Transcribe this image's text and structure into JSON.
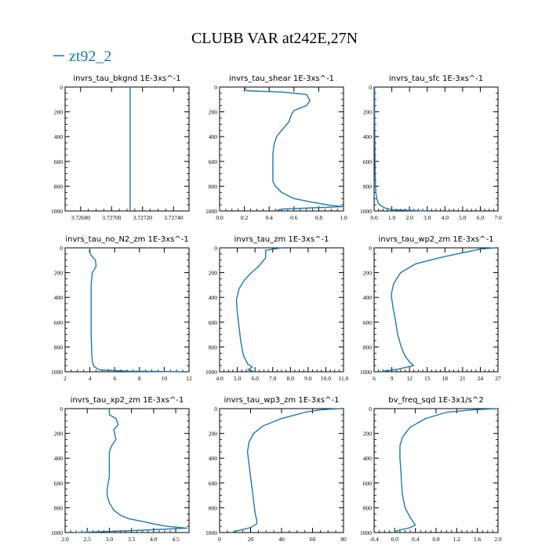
{
  "figure": {
    "title": "CLUBB VAR at242E,27N",
    "legend_label": "zt92_2",
    "line_color": "#1f77b4"
  },
  "chart_data": [
    {
      "type": "line",
      "title": "invrs_tau_bkgnd   1E-3xs^-1",
      "xlim": [
        3.7267,
        3.7275
      ],
      "ylim": [
        1000,
        0
      ],
      "xticks": [
        "3.72680",
        "3.72700",
        "3.72720",
        "3.72740"
      ],
      "xtick_values": [
        3.7268,
        3.727,
        3.7272,
        3.7274
      ],
      "yticks": [
        "0",
        "200",
        "400",
        "600",
        "800",
        "1000"
      ],
      "series": [
        {
          "x": [
            3.72712,
            3.72712
          ],
          "y": [
            0,
            1000
          ]
        }
      ]
    },
    {
      "type": "line",
      "title": "invrs_tau_shear   1E-3xs^-1",
      "xlim": [
        0,
        1.0
      ],
      "ylim": [
        1000,
        0
      ],
      "xticks": [
        "0.0",
        "0.2",
        "0.4",
        "0.6",
        "0.8",
        "1.0"
      ],
      "xtick_values": [
        0,
        0.2,
        0.4,
        0.6,
        0.8,
        1.0
      ],
      "yticks": [
        "0",
        "200",
        "400",
        "600",
        "800",
        "1000"
      ],
      "series": [
        {
          "x": [
            0.2,
            0.22,
            0.5,
            0.7,
            0.73,
            0.7,
            0.6,
            0.58,
            0.56,
            0.5,
            0.46,
            0.44,
            0.43,
            0.43,
            0.43,
            0.43,
            0.45,
            0.5,
            0.6,
            0.75,
            0.9,
            1.0,
            0.5,
            0.45
          ],
          "y": [
            0,
            30,
            40,
            60,
            110,
            150,
            190,
            220,
            280,
            350,
            400,
            460,
            540,
            640,
            700,
            760,
            800,
            850,
            900,
            930,
            955,
            965,
            985,
            1000
          ]
        }
      ]
    },
    {
      "type": "line",
      "title": "invrs_tau_sfc   1E-3xs^-1",
      "xlim": [
        0,
        7.0
      ],
      "ylim": [
        1000,
        0
      ],
      "xticks": [
        "0.0",
        "1.0",
        "2.0",
        "3.0",
        "4.0",
        "5.0",
        "6.0",
        "7.0"
      ],
      "xtick_values": [
        0,
        1,
        2,
        3,
        4,
        5,
        6,
        7
      ],
      "yticks": [
        "0",
        "200",
        "400",
        "600",
        "800",
        "1000"
      ],
      "series": [
        {
          "x": [
            0.03,
            0.03,
            0.04,
            0.05,
            0.07,
            0.1,
            0.15,
            0.25,
            0.4,
            0.6,
            1.0,
            3.0
          ],
          "y": [
            0,
            200,
            400,
            600,
            750,
            850,
            900,
            940,
            960,
            975,
            990,
            1000
          ]
        }
      ]
    },
    {
      "type": "line",
      "title": "invrs_tau_no_N2_zm   1E-3xs^-1",
      "xlim": [
        2,
        12
      ],
      "ylim": [
        1000,
        0
      ],
      "xticks": [
        "2",
        "4",
        "6",
        "8",
        "10",
        "12"
      ],
      "xtick_values": [
        2,
        4,
        6,
        8,
        10,
        12
      ],
      "yticks": [
        "0",
        "200",
        "400",
        "600",
        "800",
        "1000"
      ],
      "series": [
        {
          "x": [
            4.0,
            3.95,
            4.1,
            4.45,
            4.5,
            4.2,
            4.1,
            4.1,
            4.1,
            4.15,
            4.2,
            4.35,
            4.8,
            7.0,
            11.5
          ],
          "y": [
            0,
            30,
            60,
            100,
            150,
            200,
            300,
            500,
            700,
            850,
            920,
            960,
            985,
            995,
            1000
          ]
        }
      ]
    },
    {
      "type": "line",
      "title": "invrs_tau_zm   1E-3xs^-1",
      "xlim": [
        4.0,
        11.0
      ],
      "ylim": [
        1000,
        0
      ],
      "xticks": [
        "4.0",
        "5.0",
        "6.0",
        "7.0",
        "8.0",
        "9.0",
        "10.0",
        "11.0"
      ],
      "xtick_values": [
        4,
        5,
        6,
        7,
        8,
        9,
        10,
        11
      ],
      "yticks": [
        "0",
        "200",
        "400",
        "600",
        "800",
        "1000"
      ],
      "series": [
        {
          "x": [
            7.5,
            6.6,
            6.6,
            6.2,
            5.8,
            5.4,
            5.1,
            4.95,
            5.0,
            5.1,
            5.2,
            5.35,
            5.6,
            5.85,
            5.6,
            6.0
          ],
          "y": [
            0,
            20,
            80,
            150,
            200,
            260,
            330,
            420,
            520,
            640,
            760,
            870,
            940,
            960,
            985,
            1000
          ]
        }
      ]
    },
    {
      "type": "line",
      "title": "invrs_tau_wp2_zm   1E-3xs^-1",
      "xlim": [
        6,
        27
      ],
      "ylim": [
        1000,
        0
      ],
      "xticks": [
        "6",
        "9",
        "12",
        "15",
        "18",
        "21",
        "24",
        "27"
      ],
      "xtick_values": [
        6,
        9,
        12,
        15,
        18,
        21,
        24,
        27
      ],
      "yticks": [
        "0",
        "200",
        "400",
        "600",
        "800",
        "1000"
      ],
      "series": [
        {
          "x": [
            26.5,
            24.0,
            21.0,
            17.0,
            13.0,
            10.5,
            9.3,
            8.9,
            9.2,
            9.6,
            10.0,
            10.6,
            11.2,
            12.0,
            12.7,
            10.0,
            7.0
          ],
          "y": [
            0,
            10,
            40,
            80,
            130,
            200,
            290,
            380,
            480,
            580,
            700,
            800,
            870,
            920,
            950,
            980,
            1000
          ]
        }
      ]
    },
    {
      "type": "line",
      "title": "invrs_tau_xp2_zm   1E-3xs^-1",
      "xlim": [
        2.0,
        4.8
      ],
      "ylim": [
        1000,
        0
      ],
      "xticks": [
        "2.0",
        "2.5",
        "3.0",
        "3.5",
        "4.0",
        "4.5"
      ],
      "xtick_values": [
        2.0,
        2.5,
        3.0,
        3.5,
        4.0,
        4.5
      ],
      "yticks": [
        "0",
        "200",
        "400",
        "600",
        "800",
        "1000"
      ],
      "series": [
        {
          "x": [
            3.0,
            3.0,
            3.15,
            3.2,
            3.1,
            3.15,
            3.05,
            3.0,
            3.0,
            3.0,
            2.95,
            2.95,
            3.0,
            3.1,
            3.25,
            3.45,
            3.75,
            4.0,
            4.3,
            4.75,
            3.5,
            2.2
          ],
          "y": [
            0,
            50,
            80,
            130,
            170,
            250,
            300,
            350,
            450,
            550,
            650,
            700,
            760,
            820,
            860,
            890,
            910,
            930,
            950,
            965,
            985,
            1000
          ]
        }
      ]
    },
    {
      "type": "line",
      "title": "invrs_tau_wp3_zm   1E-3xs^-1",
      "xlim": [
        0,
        80
      ],
      "ylim": [
        1000,
        0
      ],
      "xticks": [
        "0",
        "20",
        "40",
        "60",
        "80"
      ],
      "xtick_values": [
        0,
        20,
        40,
        60,
        80
      ],
      "yticks": [
        "0",
        "200",
        "400",
        "600",
        "800",
        "1000"
      ],
      "series": [
        {
          "x": [
            78.0,
            65.0,
            55.0,
            40.0,
            28.0,
            22.0,
            19.0,
            18.0,
            19.0,
            20.0,
            21.0,
            22.0,
            23.0,
            24.0,
            24.0,
            20.0,
            10.0,
            8.0
          ],
          "y": [
            0,
            10,
            30,
            80,
            140,
            200,
            270,
            350,
            450,
            550,
            650,
            750,
            850,
            900,
            930,
            960,
            990,
            1000
          ]
        }
      ]
    },
    {
      "type": "line",
      "title": "bv_freq_sqd   1E-3x1/s^2",
      "xlim": [
        -0.4,
        2.0
      ],
      "ylim": [
        1000,
        0
      ],
      "xticks": [
        "-0.4",
        "0.0",
        "0.4",
        "0.8",
        "1.2",
        "1.6",
        "2.0"
      ],
      "xtick_values": [
        -0.4,
        0.0,
        0.4,
        0.8,
        1.2,
        1.6,
        2.0
      ],
      "yticks": [
        "0",
        "200",
        "400",
        "600",
        "800",
        "1000"
      ],
      "series": [
        {
          "x": [
            2.0,
            1.5,
            1.0,
            0.6,
            0.3,
            0.15,
            0.1,
            0.1,
            0.12,
            0.13,
            0.15,
            0.2,
            0.3,
            0.4,
            0.3,
            0.05,
            0.0
          ],
          "y": [
            0,
            10,
            30,
            80,
            150,
            230,
            300,
            400,
            500,
            600,
            700,
            800,
            880,
            940,
            960,
            985,
            1000
          ]
        }
      ]
    }
  ]
}
